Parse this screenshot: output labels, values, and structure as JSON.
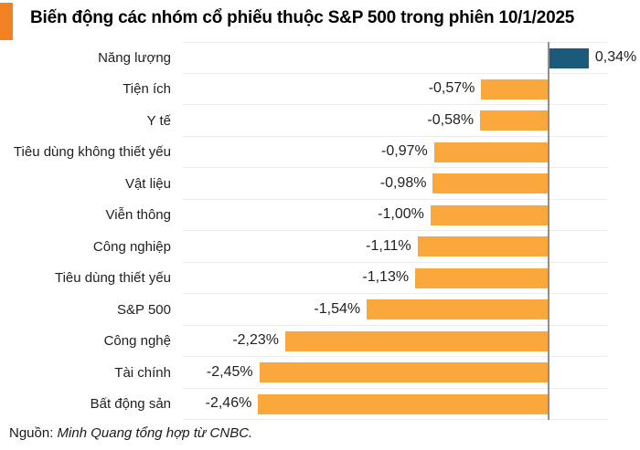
{
  "header": {
    "accent_color": "#F08224"
  },
  "source": {
    "prefix": "Nguồn:",
    "text": "Minh Quang tổng hợp từ CNBC."
  },
  "chart_data": {
    "type": "bar",
    "orientation": "horizontal",
    "title": "Biến động các nhóm cổ phiếu thuộc S&P 500 trong phiên 10/1/2025",
    "categories": [
      "Năng lượng",
      "Tiện ích",
      "Y tế",
      "Tiêu dùng không thiết yếu",
      "Vật liệu",
      "Viễn thông",
      "Công nghiệp",
      "Tiêu dùng thiết yếu",
      "S&P 500",
      "Công nghệ",
      "Tài chính",
      "Bất động sản"
    ],
    "values": [
      0.34,
      -0.57,
      -0.58,
      -0.97,
      -0.98,
      -1.0,
      -1.11,
      -1.13,
      -1.54,
      -2.23,
      -2.45,
      -2.46
    ],
    "value_labels": [
      "0,34%",
      "-0,57%",
      "-0,58%",
      "-0,97%",
      "-0,98%",
      "-1,00%",
      "-1,11%",
      "-1,13%",
      "-1,54%",
      "-2,23%",
      "-2,45%",
      "-2,46%"
    ],
    "xlabel": "",
    "ylabel": "",
    "xlim": [
      -3.0,
      0.5
    ],
    "grid": true,
    "legend": false,
    "bar_colors": {
      "positive": "#1B5A7A",
      "negative": "#FAA83C"
    },
    "gridline_color": "#EDEDED",
    "axis_line_color": "#8F8F8F",
    "value_label_decimal": "comma"
  }
}
